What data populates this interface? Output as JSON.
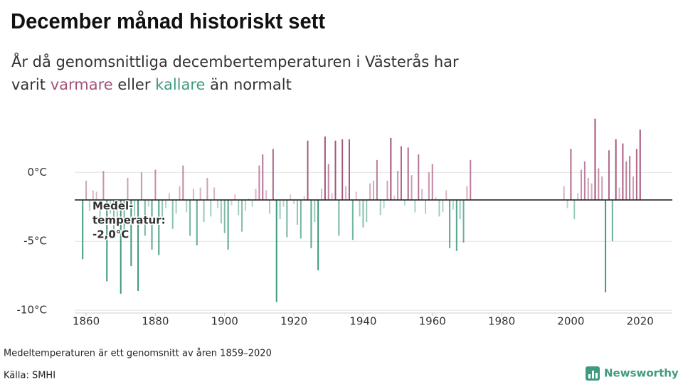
{
  "chart_data": {
    "type": "bar",
    "title": "December månad historiskt sett",
    "subtitle_lines": [
      [
        {
          "text": "År då genomsnittliga decembertemperaturen i Västerås har",
          "tone": "plain"
        }
      ],
      [
        {
          "text": "varit ",
          "tone": "plain"
        },
        {
          "text": "varmare",
          "tone": "warm"
        },
        {
          "text": " eller ",
          "tone": "plain"
        },
        {
          "text": "kallare",
          "tone": "cold"
        },
        {
          "text": " än normalt",
          "tone": "plain"
        }
      ]
    ],
    "warm_color": "#a5517a",
    "cold_color": "#3f9a80",
    "reference_line": -2.0,
    "annotation_lines": [
      "Medel-",
      "temperatur:",
      "-2,0°C"
    ],
    "x": [
      1859,
      1860,
      1861,
      1862,
      1863,
      1864,
      1865,
      1866,
      1867,
      1868,
      1869,
      1870,
      1871,
      1872,
      1873,
      1874,
      1875,
      1876,
      1877,
      1878,
      1879,
      1880,
      1881,
      1882,
      1883,
      1884,
      1885,
      1886,
      1887,
      1888,
      1889,
      1890,
      1891,
      1892,
      1893,
      1894,
      1895,
      1896,
      1897,
      1898,
      1899,
      1900,
      1901,
      1902,
      1903,
      1904,
      1905,
      1906,
      1907,
      1908,
      1909,
      1910,
      1911,
      1912,
      1913,
      1914,
      1915,
      1916,
      1917,
      1918,
      1919,
      1920,
      1921,
      1922,
      1923,
      1924,
      1925,
      1926,
      1927,
      1928,
      1929,
      1930,
      1931,
      1932,
      1933,
      1934,
      1935,
      1936,
      1937,
      1938,
      1939,
      1940,
      1941,
      1942,
      1943,
      1944,
      1945,
      1946,
      1947,
      1948,
      1949,
      1950,
      1951,
      1952,
      1953,
      1954,
      1955,
      1956,
      1957,
      1958,
      1959,
      1960,
      1961,
      1962,
      1963,
      1964,
      1965,
      1966,
      1967,
      1968,
      1969,
      1970,
      1971,
      1998,
      1999,
      2000,
      2001,
      2002,
      2003,
      2004,
      2005,
      2006,
      2007,
      2008,
      2009,
      2010,
      2011,
      2012,
      2013,
      2014,
      2015,
      2016,
      2017,
      2018,
      2019,
      2020
    ],
    "values": [
      -6.3,
      -0.6,
      -2.8,
      -1.3,
      -1.4,
      -3.5,
      0.1,
      -7.9,
      -3.0,
      -4.2,
      -3.3,
      -8.8,
      -4.5,
      -0.4,
      -6.8,
      -3.2,
      -8.6,
      0.0,
      -4.6,
      -2.5,
      -5.6,
      0.2,
      -6.0,
      -3.8,
      -2.6,
      -1.5,
      -4.1,
      -3.0,
      -1.0,
      0.5,
      -2.9,
      -4.6,
      -1.2,
      -5.3,
      -1.1,
      -3.6,
      -0.4,
      -3.2,
      -1.1,
      -2.6,
      -3.7,
      -4.4,
      -5.6,
      -2.4,
      -1.6,
      -3.1,
      -4.3,
      -2.8,
      -1.9,
      -2.5,
      -1.2,
      0.5,
      1.3,
      -1.3,
      -3.0,
      1.7,
      -9.4,
      -3.4,
      -2.5,
      -4.7,
      -1.6,
      -2.3,
      -3.8,
      -4.8,
      -1.7,
      2.3,
      -5.5,
      -3.6,
      -7.1,
      -1.2,
      2.6,
      0.6,
      -1.5,
      2.3,
      -4.6,
      2.4,
      -1.0,
      2.4,
      -4.9,
      -1.4,
      -3.2,
      -4.0,
      -3.6,
      -0.8,
      -0.6,
      0.9,
      -3.1,
      -2.6,
      -0.6,
      2.5,
      -1.7,
      0.1,
      1.9,
      -2.4,
      1.8,
      -0.2,
      -2.9,
      1.3,
      -1.2,
      -3.0,
      0.0,
      0.6,
      -1.8,
      -3.2,
      -2.9,
      -1.3,
      -5.5,
      -2.7,
      -5.7,
      -3.4,
      -5.1,
      -1.0,
      0.9,
      -1.0,
      -2.6,
      1.7,
      -3.4,
      -1.5,
      0.2,
      0.8,
      -0.4,
      -0.8,
      3.9,
      0.3,
      -0.3,
      -8.7,
      1.6,
      -5.0,
      2.4,
      -1.1,
      2.1,
      0.8,
      1.2,
      -0.3,
      1.7,
      3.1
    ],
    "xlim": [
      1856.7,
      2029.3
    ],
    "xticks": [
      1860,
      1880,
      1900,
      1920,
      1940,
      1960,
      1980,
      2000,
      2020
    ],
    "ylim": [
      -10.2,
      4.4
    ],
    "yticks": [
      {
        "value": 0,
        "label": "0°C"
      },
      {
        "value": -5,
        "label": "-5°C"
      },
      {
        "value": -10,
        "label": "-10°C"
      }
    ],
    "grid": true,
    "note": "Medeltemperaturen är ett genomsnitt av åren 1859–2020",
    "source": "Källa: SMHI",
    "brand": "Newsworthy"
  }
}
